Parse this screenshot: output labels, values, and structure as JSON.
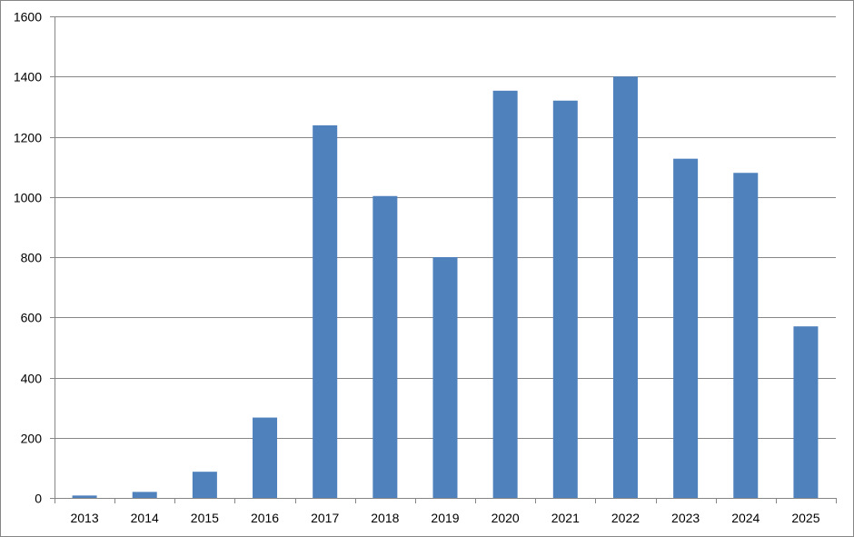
{
  "chart_data": {
    "type": "bar",
    "title": "",
    "xlabel": "",
    "ylabel": "",
    "categories": [
      "2013",
      "2014",
      "2015",
      "2016",
      "2017",
      "2018",
      "2019",
      "2020",
      "2021",
      "2022",
      "2023",
      "2024",
      "2025"
    ],
    "series": [
      {
        "values": [
          8,
          20,
          87,
          267,
          1238,
          1003,
          800,
          1353,
          1320,
          1400,
          1127,
          1080,
          570
        ]
      }
    ],
    "ylim": [
      0,
      1600
    ],
    "yticks": [
      0,
      200,
      400,
      600,
      800,
      1000,
      1200,
      1400,
      1600
    ],
    "grid": true,
    "legend": "none",
    "colors": {
      "bar": "#4F81BD",
      "grid": "#868686",
      "axis": "#868686"
    }
  }
}
